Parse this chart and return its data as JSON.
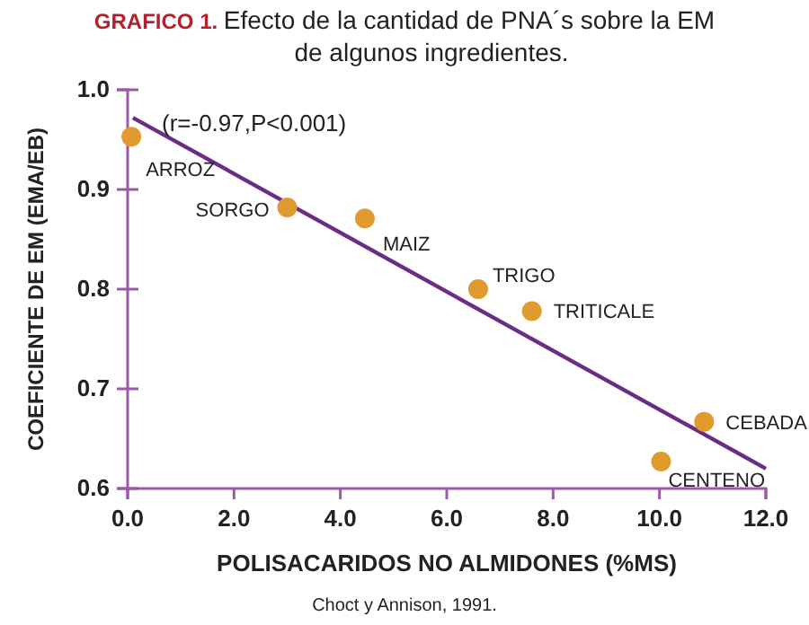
{
  "chart_data": {
    "type": "scatter",
    "title": "GRAFICO 1.",
    "subtitle": "Efecto de la cantidad de PNA´s sobre la EM de algunos ingredientes.",
    "xlabel": "POLISACARIDOS NO ALMIDONES (%MS)",
    "ylabel": "COEFICIENTE DE EM (EMA/EB)",
    "xlim": [
      0,
      12
    ],
    "xticks": [
      {
        "value": 0,
        "label": "0.0"
      },
      {
        "value": 2,
        "label": "2.0"
      },
      {
        "value": 4,
        "label": "4.0"
      },
      {
        "value": 6,
        "label": "6.0"
      },
      {
        "value": 8,
        "label": "8.0"
      },
      {
        "value": 10,
        "label": "10.0"
      },
      {
        "value": 12,
        "label": "12.0"
      }
    ],
    "ylim": [
      0.6,
      1.0
    ],
    "yticks": [
      {
        "value": 0.6,
        "label": "0.6"
      },
      {
        "value": 0.7,
        "label": "0.7"
      },
      {
        "value": 0.8,
        "label": "0.8"
      },
      {
        "value": 0.9,
        "label": "0.9"
      },
      {
        "value": 1.0,
        "label": "1.0"
      }
    ],
    "grid": false,
    "series": [
      {
        "marker": "circle",
        "color": "#e09a2e",
        "x": [
          0.07,
          3.0,
          4.46,
          6.59,
          7.6,
          10.03,
          10.84
        ],
        "values": [
          0.953,
          0.882,
          0.871,
          0.8,
          0.778,
          0.627,
          0.667
        ]
      },
      {
        "type": "line",
        "color": "#6b2d83",
        "x": [
          0.1,
          12.0
        ],
        "values": [
          0.972,
          0.62
        ]
      }
    ],
    "annotations": [
      {
        "text": "ARROZ",
        "x": 0.07,
        "y": 0.953
      },
      {
        "text": "SORGO",
        "x": 3.0,
        "y": 0.882
      },
      {
        "text": "MAIZ",
        "x": 4.46,
        "y": 0.871
      },
      {
        "text": "TRIGO",
        "x": 6.59,
        "y": 0.8
      },
      {
        "text": "TRITICALE",
        "x": 7.6,
        "y": 0.778
      },
      {
        "text": "CENTENO",
        "x": 10.03,
        "y": 0.627
      },
      {
        "text": "CEBADA",
        "x": 10.84,
        "y": 0.667
      },
      "(r=-0.97,P<0.001)",
      "Choct y Annison, 1991."
    ]
  }
}
